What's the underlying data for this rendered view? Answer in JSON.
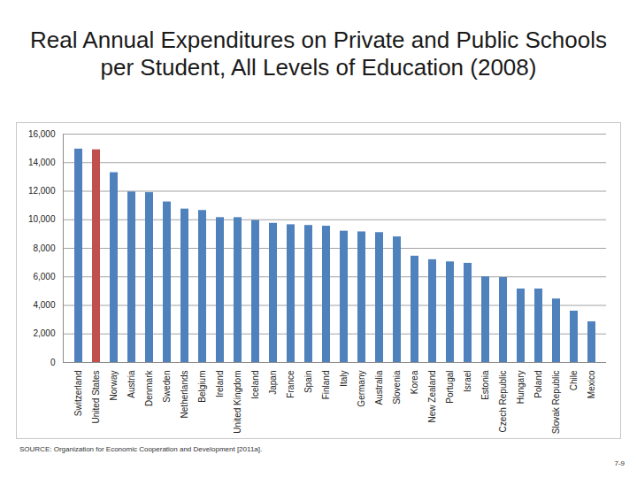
{
  "chart_data": {
    "type": "bar",
    "title": "Real Annual Expenditures on Private and Public Schools per Student, All Levels of Education (2008)",
    "source": "SOURCE: Organization for Economic Cooperation and Development [2011a].",
    "page_number": "7-9",
    "categories": [
      "Switzerland",
      "United States",
      "Norway",
      "Austria",
      "Denmark",
      "Sweden",
      "Netherlands",
      "Belgium",
      "Ireland",
      "United Kingdom",
      "Iceland",
      "Japan",
      "France",
      "Spain",
      "Finland",
      "Italy",
      "Germany",
      "Australia",
      "Slovenia",
      "Korea",
      "New Zealand",
      "Portugal",
      "Israel",
      "Estonia",
      "Czech Republic",
      "Hungary",
      "Poland",
      "Slovak Republic",
      "Chile",
      "Mexico"
    ],
    "values": [
      14950,
      14900,
      13300,
      11950,
      11900,
      11250,
      10750,
      10650,
      10150,
      10150,
      9950,
      9750,
      9650,
      9600,
      9550,
      9200,
      9150,
      9100,
      8800,
      7450,
      7200,
      7050,
      6950,
      6000,
      5950,
      5150,
      5150,
      4450,
      3600,
      2850
    ],
    "colors": [
      "#4f81bd",
      "#c0504d",
      "#4f81bd",
      "#4f81bd",
      "#4f81bd",
      "#4f81bd",
      "#4f81bd",
      "#4f81bd",
      "#4f81bd",
      "#4f81bd",
      "#4f81bd",
      "#4f81bd",
      "#4f81bd",
      "#4f81bd",
      "#4f81bd",
      "#4f81bd",
      "#4f81bd",
      "#4f81bd",
      "#4f81bd",
      "#4f81bd",
      "#4f81bd",
      "#4f81bd",
      "#4f81bd",
      "#4f81bd",
      "#4f81bd",
      "#4f81bd",
      "#4f81bd",
      "#4f81bd",
      "#4f81bd",
      "#4f81bd"
    ],
    "ylim": [
      0,
      16000
    ],
    "yticks": [
      0,
      {
        "value": 2000,
        "label": "2,000"
      },
      {
        "value": 4000,
        "label": "4,000"
      },
      {
        "value": 6000,
        "label": "6,000"
      },
      {
        "value": 8000,
        "label": "8,000"
      },
      {
        "value": 10000,
        "label": "10,000"
      },
      {
        "value": 12000,
        "label": "12,000"
      },
      {
        "value": 14000,
        "label": "14,000"
      },
      {
        "value": 16000,
        "label": "16,000"
      }
    ],
    "grid": true
  }
}
